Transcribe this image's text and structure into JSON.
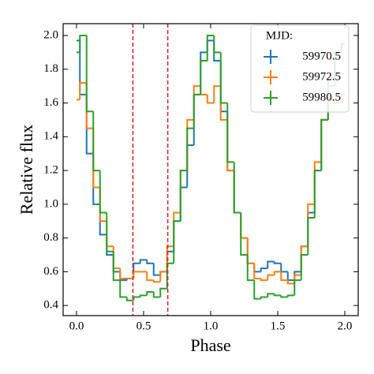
{
  "chart_data": {
    "type": "step",
    "x_label": "Phase",
    "y_label": "Relative flux",
    "legend_title": "MJD:",
    "legend": "upper right",
    "x": [
      0.0,
      0.05,
      0.1,
      0.15,
      0.2,
      0.25,
      0.3,
      0.35,
      0.4,
      0.45,
      0.5,
      0.55,
      0.6,
      0.65,
      0.7,
      0.75,
      0.8,
      0.85,
      0.9,
      0.95,
      1.0,
      1.05,
      1.1,
      1.15,
      1.2,
      1.25,
      1.3,
      1.35,
      1.4,
      1.45,
      1.5,
      1.55,
      1.6,
      1.65,
      1.7,
      1.75,
      1.8,
      1.85,
      1.9,
      1.95,
      2.0
    ],
    "series": [
      {
        "name": "59970.5",
        "color": "#1f77b4",
        "values": [
          1.97,
          1.65,
          1.3,
          1.0,
          0.82,
          0.7,
          0.6,
          0.55,
          0.56,
          0.65,
          0.67,
          0.65,
          0.58,
          0.6,
          0.72,
          0.9,
          1.1,
          1.35,
          1.65,
          1.9,
          1.97,
          1.85,
          1.55,
          1.2,
          0.95,
          0.8,
          0.65,
          0.6,
          0.62,
          0.66,
          0.65,
          0.6,
          0.55,
          0.6,
          0.75,
          0.95,
          1.2,
          1.5,
          1.75,
          1.9,
          1.95
        ]
      },
      {
        "name": "59972.5",
        "color": "#ff7f0e",
        "values": [
          1.62,
          1.72,
          1.45,
          1.1,
          0.9,
          0.75,
          0.62,
          0.56,
          0.56,
          0.6,
          0.6,
          0.55,
          0.54,
          0.6,
          0.75,
          0.95,
          1.2,
          1.5,
          1.7,
          1.65,
          1.6,
          1.7,
          1.5,
          1.2,
          0.95,
          0.8,
          0.65,
          0.56,
          0.55,
          0.58,
          0.6,
          0.55,
          0.53,
          0.58,
          0.75,
          1.0,
          1.25,
          1.5,
          1.62,
          1.6,
          1.65
        ]
      },
      {
        "name": "59980.5",
        "color": "#2ca02c",
        "values": [
          1.9,
          2.0,
          1.55,
          1.2,
          0.95,
          0.72,
          0.55,
          0.45,
          0.43,
          0.45,
          0.46,
          0.48,
          0.45,
          0.5,
          0.65,
          0.9,
          1.2,
          1.45,
          1.65,
          1.85,
          2.0,
          1.9,
          1.6,
          1.25,
          0.95,
          0.7,
          0.55,
          0.44,
          0.45,
          0.47,
          0.46,
          0.45,
          0.46,
          0.55,
          0.7,
          0.92,
          1.2,
          1.5,
          1.7,
          1.9,
          1.95
        ]
      }
    ],
    "vlines": [
      0.42,
      0.68
    ],
    "vline_color": "#d62728",
    "xlim": [
      -0.1,
      2.1
    ],
    "ylim": [
      0.34,
      2.07
    ],
    "xticks": [
      {
        "value": 0,
        "label": "0.0"
      },
      0.5,
      {
        "value": 1,
        "label": "1.0"
      },
      1.5,
      {
        "value": 2,
        "label": "2.0"
      }
    ],
    "yticks": [
      0.4,
      0.6,
      0.8,
      {
        "value": 1,
        "label": "1.0"
      },
      1.2,
      1.4,
      1.6,
      1.8,
      {
        "value": 2,
        "label": "2.0"
      }
    ]
  }
}
